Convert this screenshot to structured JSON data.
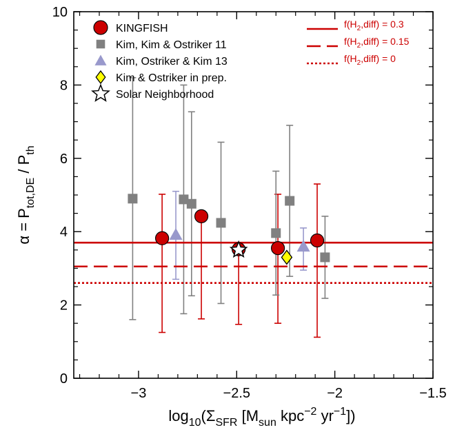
{
  "chart_data": {
    "type": "scatter",
    "xlim": [
      -3.33,
      -1.5
    ],
    "ylim": [
      0,
      10
    ],
    "x_ticks": [
      -3,
      -2.5,
      -2,
      -1.5
    ],
    "x_tick_labels": [
      "−3",
      "−2.5",
      "−2",
      "−1.5"
    ],
    "y_ticks": [
      0,
      2,
      4,
      6,
      8,
      10
    ],
    "y_tick_labels": [
      "0",
      "2",
      "4",
      "6",
      "8",
      "10"
    ],
    "xlabel": {
      "pre": "log",
      "sub1": "10",
      "mid": "(Σ",
      "sub2": "SFR",
      "mid2": " [M",
      "sub3": "sun",
      "mid3": " kpc",
      "sup1": "−2",
      "mid4": " yr",
      "sup2": "−1",
      "post": "])"
    },
    "ylabel": {
      "pre": "α = P",
      "sub1": "tot,DE",
      "mid": " / P",
      "sub2": "th"
    },
    "grid": false,
    "legend_position": "top-left",
    "series": [
      {
        "name": "KINGFISH",
        "marker": "circle",
        "color": "#cc0000",
        "errorbar_color": "#cc0000",
        "points": [
          {
            "x": -2.88,
            "y": 3.82,
            "ylo": 1.25,
            "yhi": 5.02
          },
          {
            "x": -2.68,
            "y": 4.42,
            "ylo": 1.62,
            "yhi": 4.42
          },
          {
            "x": -2.49,
            "y": 3.52,
            "ylo": 1.47,
            "yhi": 3.52
          },
          {
            "x": -2.29,
            "y": 3.55,
            "ylo": 1.5,
            "yhi": 5.02
          },
          {
            "x": -2.09,
            "y": 3.76,
            "ylo": 1.12,
            "yhi": 5.3
          }
        ]
      },
      {
        "name": "Kim, Kim & Ostriker 11",
        "marker": "square",
        "color": "#808080",
        "errorbar_color": "#808080",
        "points": [
          {
            "x": -3.03,
            "y": 4.9,
            "ylo": 1.6,
            "yhi": 8.2
          },
          {
            "x": -2.77,
            "y": 4.88,
            "ylo": 1.76,
            "yhi": 8.0
          },
          {
            "x": -2.73,
            "y": 4.76,
            "ylo": 2.25,
            "yhi": 7.27
          },
          {
            "x": -2.58,
            "y": 4.24,
            "ylo": 2.04,
            "yhi": 6.44
          },
          {
            "x": -2.3,
            "y": 3.96,
            "ylo": 2.27,
            "yhi": 5.65
          },
          {
            "x": -2.23,
            "y": 4.84,
            "ylo": 2.78,
            "yhi": 6.9
          },
          {
            "x": -2.05,
            "y": 3.3,
            "ylo": 2.18,
            "yhi": 4.42
          }
        ]
      },
      {
        "name": "Kim, Ostriker & Kim 13",
        "marker": "triangle",
        "color": "#9999cc",
        "errorbar_color": "#9999cc",
        "points": [
          {
            "x": -2.81,
            "y": 3.92,
            "ylo": 2.7,
            "yhi": 5.1
          },
          {
            "x": -2.16,
            "y": 3.6,
            "ylo": 2.95,
            "yhi": 4.1
          }
        ]
      },
      {
        "name": "Kim & Ostriker in prep.",
        "marker": "diamond",
        "color": "#ffff00",
        "points": [
          {
            "x": -2.245,
            "y": 3.3
          }
        ]
      },
      {
        "name": "Solar Neighborhood",
        "marker": "star",
        "color": "#ffffff",
        "points": [
          {
            "x": -2.49,
            "y": 3.5
          }
        ]
      }
    ],
    "reference_lines": [
      {
        "label_pre": "f(H",
        "label_sub": "2",
        "label_post": ",diff) = 0.3",
        "y": 3.7,
        "style": "solid",
        "color": "#cc0000"
      },
      {
        "label_pre": "f(H",
        "label_sub": "2",
        "label_post": ",diff) = 0.15",
        "y": 3.05,
        "style": "dashed",
        "color": "#cc0000"
      },
      {
        "label_pre": "f(H",
        "label_sub": "2",
        "label_post": ",diff) = 0",
        "y": 2.6,
        "style": "dotted",
        "color": "#cc0000"
      }
    ]
  }
}
